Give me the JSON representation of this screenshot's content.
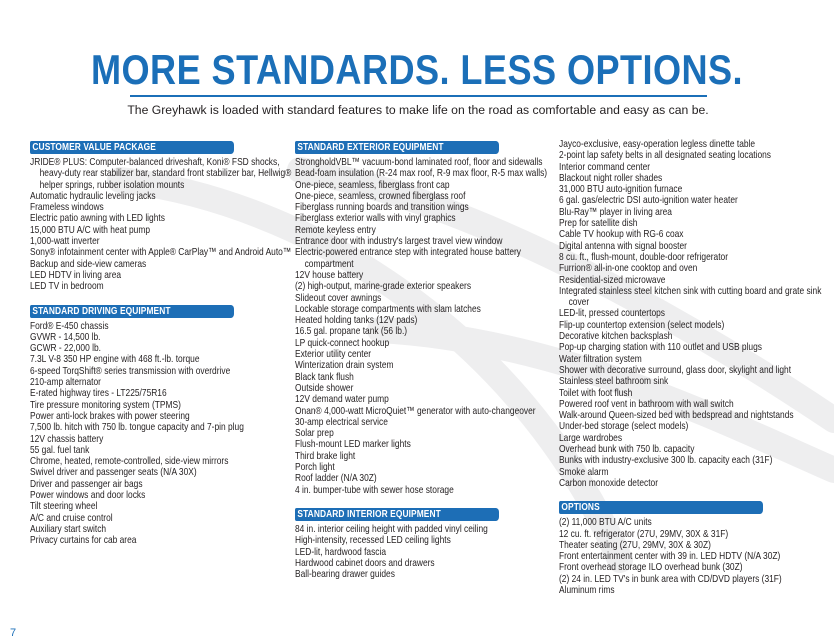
{
  "title": "MORE STANDARDS. LESS OPTIONS.",
  "subtitle": "The Greyhawk is loaded with standard features to make life on the road as comfortable and easy as can be.",
  "page_number": "7",
  "accent_color": "#1b6fb8",
  "sections": {
    "customer_value": {
      "heading": "CUSTOMER VALUE PACKAGE",
      "items": [
        "JRIDE® PLUS: Computer-balanced driveshaft, Koni® FSD shocks, heavy-duty rear stabilizer bar, standard front stabilizer bar, Hellwig® helper springs, rubber isolation mounts",
        "Automatic hydraulic leveling jacks",
        "Frameless windows",
        "Electric patio awning with LED lights",
        "15,000 BTU A/C with heat pump",
        "1,000-watt inverter",
        "Sony® infotainment center with Apple® CarPlay™ and Android Auto™",
        "Backup and side-view cameras",
        "LED HDTV in living area",
        "LED TV in bedroom"
      ]
    },
    "driving": {
      "heading": "STANDARD DRIVING EQUIPMENT",
      "items": [
        "Ford® E-450 chassis",
        "GVWR - 14,500 lb.",
        "GCWR - 22,000 lb.",
        "7.3L V-8 350 HP engine with 468 ft.-lb. torque",
        "6-speed TorqShift® series transmission with overdrive",
        "210-amp alternator",
        "E-rated highway tires - LT225/75R16",
        "Tire pressure monitoring system (TPMS)",
        "Power anti-lock brakes with power steering",
        "7,500 lb. hitch with 750 lb. tongue capacity and 7-pin plug",
        "12V chassis battery",
        "55 gal. fuel tank",
        "Chrome, heated, remote-controlled, side-view mirrors",
        "Swivel driver and passenger seats (N/A 30X)",
        "Driver and passenger air bags",
        "Power windows and door locks",
        "Tilt steering wheel",
        "A/C and cruise control",
        "Auxiliary start switch",
        "Privacy curtains for cab area"
      ]
    },
    "exterior": {
      "heading": "STANDARD EXTERIOR EQUIPMENT",
      "items": [
        "StrongholdVBL™ vacuum-bond laminated roof, floor and sidewalls",
        "Bead-foam insulation (R-24 max roof, R-9 max floor, R-5 max walls)",
        "One-piece, seamless, fiberglass front cap",
        "One-piece, seamless, crowned fiberglass roof",
        "Fiberglass running boards and transition wings",
        "Fiberglass exterior walls with vinyl graphics",
        "Remote keyless entry",
        "Entrance door with industry's largest travel view window",
        "Electric-powered entrance step with integrated house battery compartment",
        "12V house battery",
        "(2) high-output, marine-grade exterior speakers",
        "Slideout cover awnings",
        "Lockable storage compartments with slam latches",
        "Heated holding tanks (12V pads)",
        "16.5 gal. propane tank (56 lb.)",
        "LP quick-connect hookup",
        "Exterior utility center",
        "Winterization drain system",
        "Black tank flush",
        "Outside shower",
        "12V demand water pump",
        "Onan® 4,000-watt MicroQuiet™ generator with auto-changeover",
        "30-amp electrical service",
        "Solar prep",
        "Flush-mount LED marker lights",
        "Third brake light",
        "Porch light",
        "Roof ladder (N/A 30Z)",
        "4 in. bumper-tube with sewer hose storage"
      ]
    },
    "interior": {
      "heading": "STANDARD INTERIOR EQUIPMENT",
      "items": [
        "84 in. interior ceiling height with padded vinyl ceiling",
        "High-intensity, recessed LED ceiling lights",
        "LED-lit, hardwood fascia",
        "Hardwood cabinet doors and drawers",
        "Ball-bearing drawer guides"
      ]
    },
    "interior_cont": {
      "items": [
        "Jayco-exclusive, easy-operation legless dinette table",
        "2-point lap safety belts in all designated seating locations",
        "Interior command center",
        "Blackout night roller shades",
        "31,000 BTU auto-ignition furnace",
        "6 gal. gas/electric DSI auto-ignition water heater",
        "Blu-Ray™ player in living area",
        "Prep for satellite dish",
        "Cable TV hookup with RG-6 coax",
        "Digital antenna with signal booster",
        "8 cu. ft., flush-mount, double-door refrigerator",
        "Furrion® all-in-one cooktop and oven",
        "Residential-sized microwave",
        "Integrated stainless steel kitchen sink with cutting board and grate sink cover",
        "LED-lit, pressed countertops",
        "Flip-up countertop extension (select models)",
        "Decorative kitchen backsplash",
        "Pop-up charging station with 110 outlet and USB plugs",
        "Water filtration system",
        "Shower with decorative surround, glass door, skylight and light",
        "Stainless steel bathroom sink",
        "Toilet with foot flush",
        "Powered roof vent in bathroom with wall switch",
        "Walk-around Queen-sized bed with bedspread and nightstands",
        "Under-bed storage (select models)",
        "Large wardrobes",
        "Overhead bunk with 750 lb. capacity",
        "Bunks with industry-exclusive 300 lb. capacity each (31F)",
        "Smoke alarm",
        "Carbon monoxide detector"
      ]
    },
    "options": {
      "heading": "OPTIONS",
      "items": [
        "(2) 11,000 BTU A/C units",
        "12 cu. ft. refrigerator (27U, 29MV, 30X & 31F)",
        "Theater seating (27U, 29MV, 30X & 30Z)",
        "Front entertainment center with 39 in. LED HDTV (N/A 30Z)",
        "Front overhead storage ILO overhead bunk (30Z)",
        "(2) 24 in. LED TV's in bunk area with CD/DVD players (31F)",
        "Aluminum rims"
      ]
    }
  }
}
